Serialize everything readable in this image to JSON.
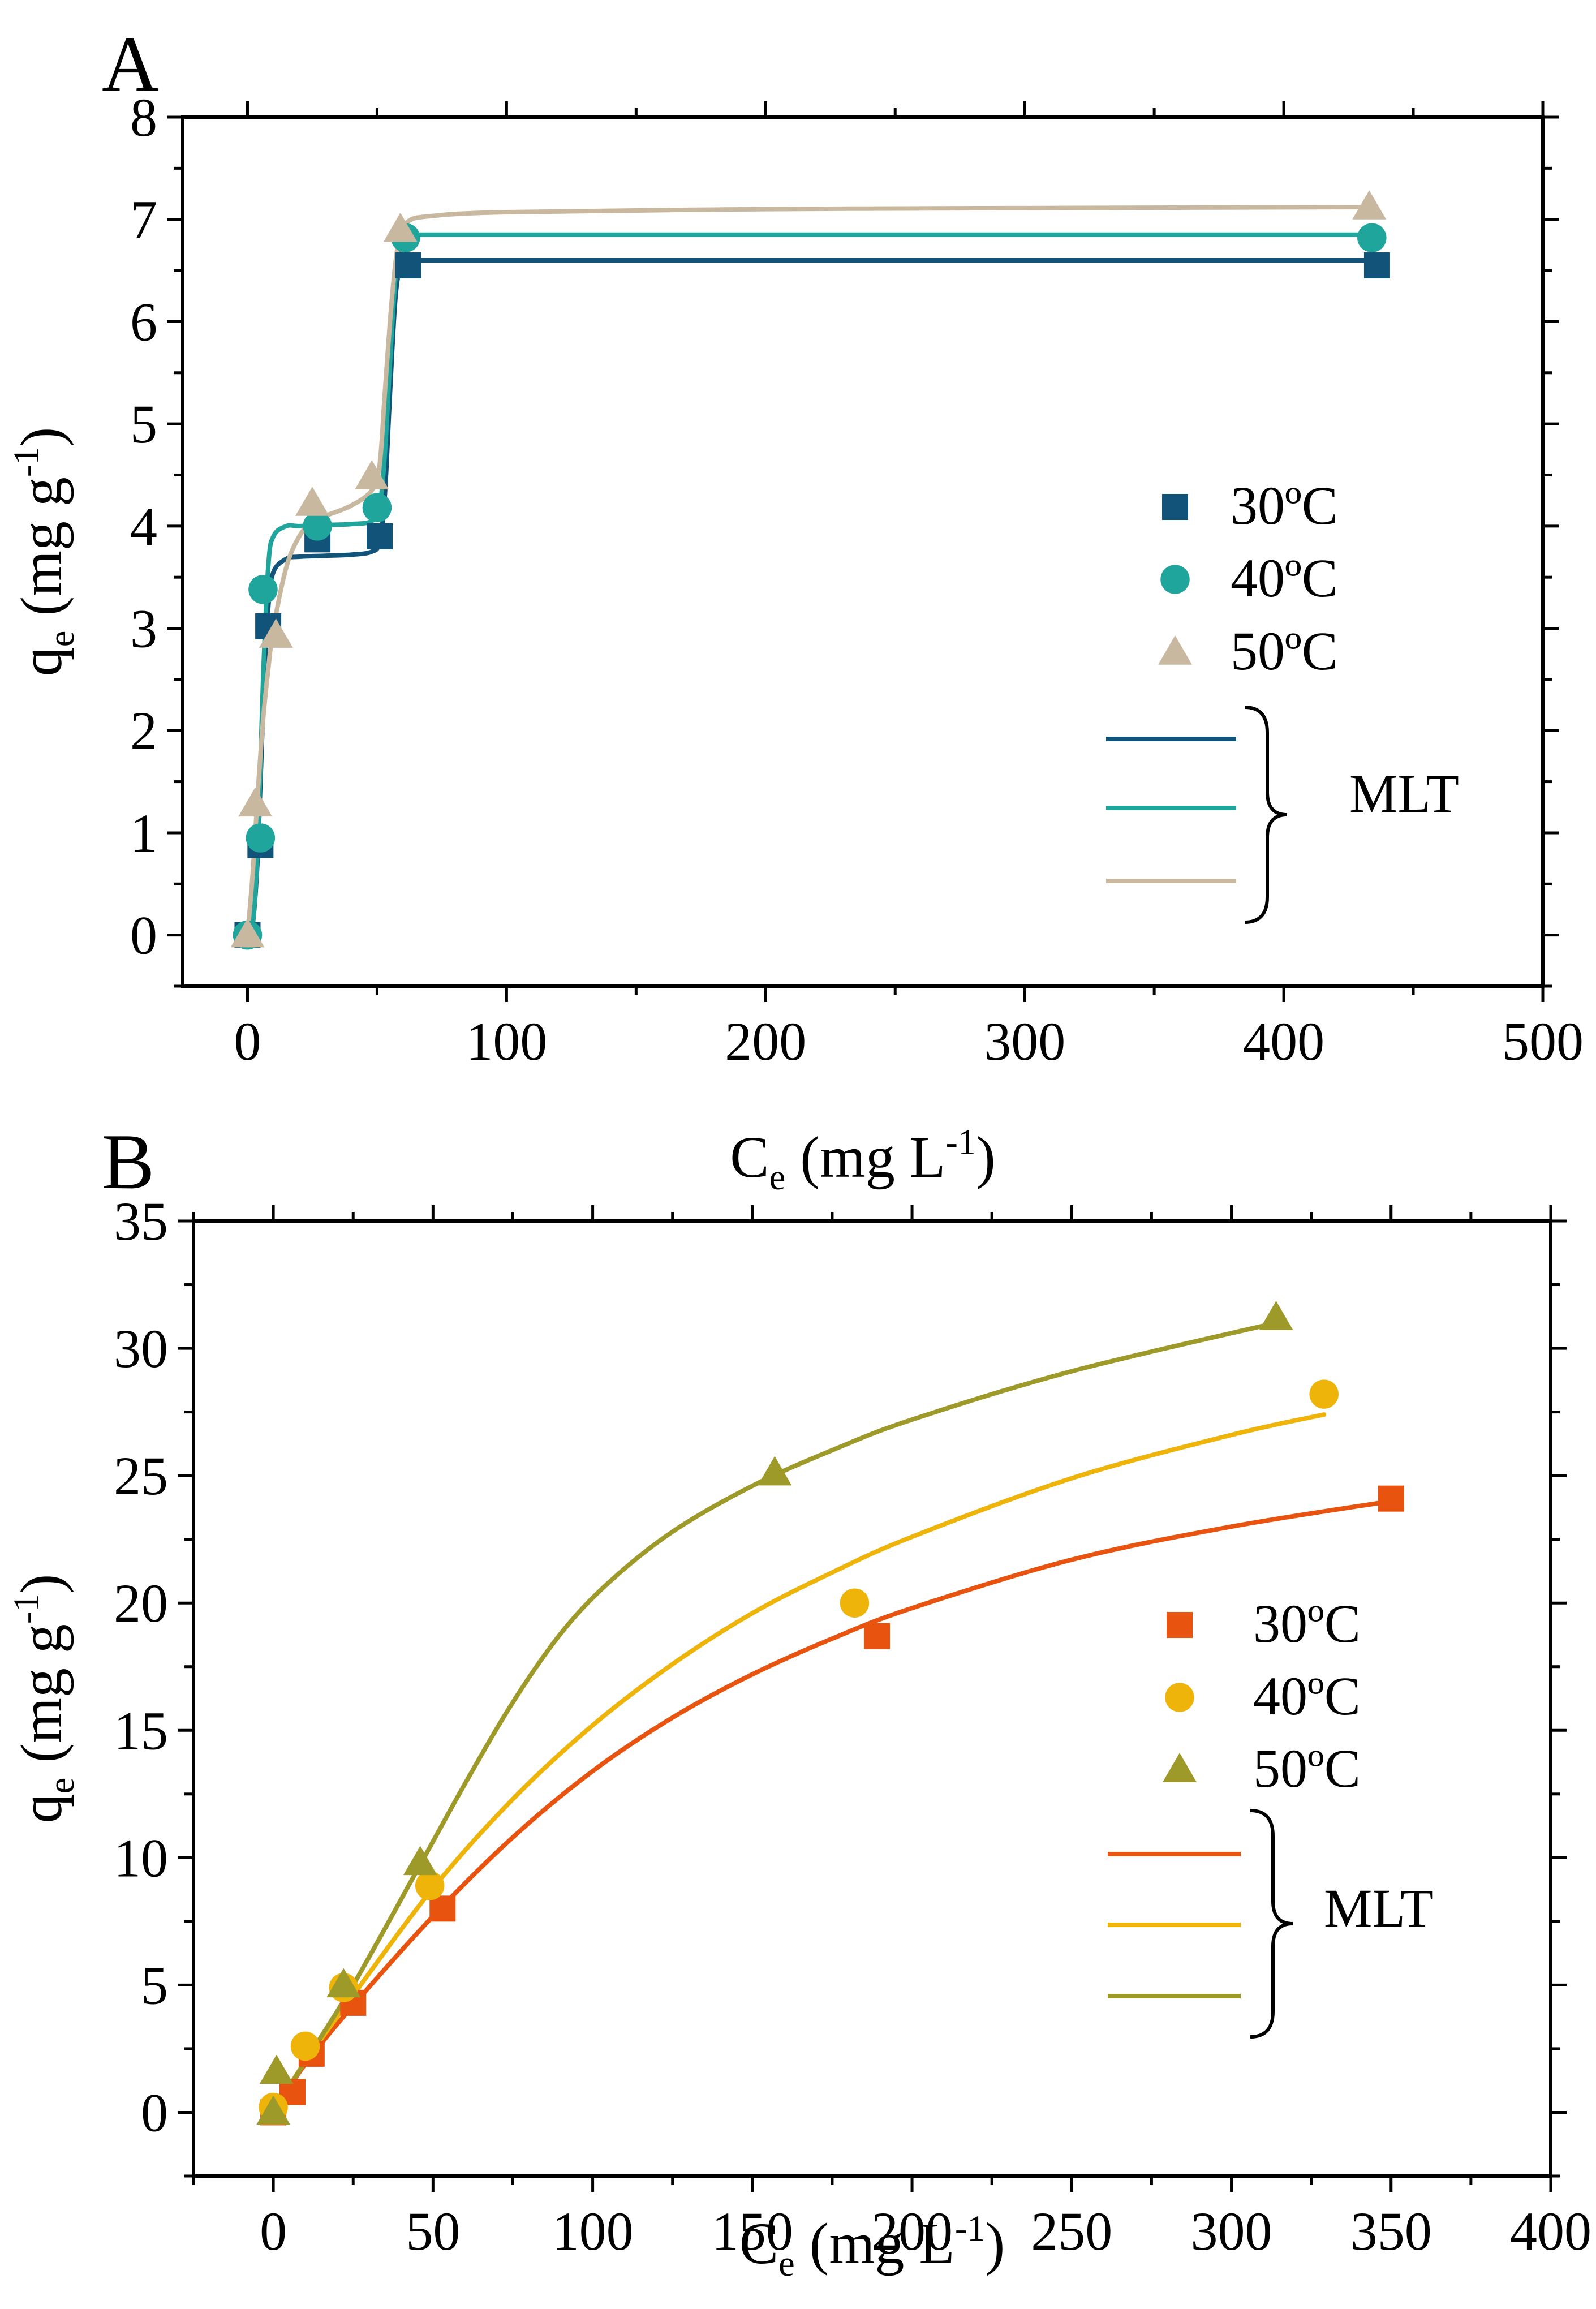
{
  "chart_data": [
    {
      "type": "scatter",
      "panel_label": "A",
      "xlabel": {
        "base": "C",
        "sub": "e",
        "units": " (mg L",
        "sup": "-1",
        "close": ")"
      },
      "ylabel": {
        "base": "q",
        "sub": "e",
        "units": " (mg g",
        "sup": "-1",
        "close": ")"
      },
      "xlim": [
        -25,
        500
      ],
      "ylim": [
        -0.5,
        8
      ],
      "xticks": [
        0,
        100,
        200,
        300,
        400,
        500
      ],
      "yticks": [
        0,
        1,
        2,
        3,
        4,
        5,
        6,
        7,
        8
      ],
      "legend_position": "right",
      "fit_label": "MLT",
      "series": [
        {
          "name": "30ºC",
          "marker": "square",
          "color": "#12537A",
          "x": [
            0,
            5,
            8,
            27,
            51,
            62,
            436
          ],
          "y": [
            0,
            0.88,
            3.02,
            3.87,
            3.9,
            6.55,
            6.55
          ],
          "fit_x": [
            0,
            2,
            4,
            6,
            8,
            10,
            15,
            20,
            30,
            40,
            48,
            51,
            53,
            55,
            57,
            59,
            61,
            65,
            100,
            200,
            300,
            436
          ],
          "fit_y": [
            0,
            0.1,
            0.8,
            2.2,
            3.2,
            3.55,
            3.68,
            3.7,
            3.71,
            3.72,
            3.75,
            3.85,
            4.3,
            5.3,
            6.2,
            6.55,
            6.6,
            6.6,
            6.6,
            6.6,
            6.6,
            6.6
          ]
        },
        {
          "name": "40ºC",
          "marker": "circle",
          "color": "#20A59C",
          "x": [
            0,
            5,
            6,
            27,
            50,
            61,
            434
          ],
          "y": [
            0,
            0.95,
            3.38,
            4.0,
            4.18,
            6.82,
            6.82
          ],
          "fit_x": [
            0,
            2,
            4,
            6,
            8,
            10,
            15,
            20,
            30,
            40,
            48,
            51,
            53,
            55,
            57,
            59,
            61,
            65,
            100,
            200,
            300,
            434
          ],
          "fit_y": [
            0,
            0.1,
            0.9,
            2.5,
            3.6,
            3.9,
            4.0,
            4.0,
            4.01,
            4.02,
            4.05,
            4.2,
            4.7,
            5.6,
            6.4,
            6.8,
            6.85,
            6.85,
            6.85,
            6.85,
            6.85,
            6.85
          ]
        },
        {
          "name": "50ºC",
          "marker": "triangle",
          "color": "#C8B8A0",
          "x": [
            0,
            3,
            11,
            25,
            48,
            59,
            433
          ],
          "y": [
            0,
            1.28,
            2.93,
            4.22,
            4.48,
            6.9,
            7.12
          ],
          "fit_x": [
            0,
            2,
            4,
            6,
            8,
            10,
            15,
            20,
            25,
            30,
            40,
            48,
            51,
            53,
            55,
            57,
            59,
            62,
            70,
            100,
            200,
            300,
            433
          ],
          "fit_y": [
            0,
            0.6,
            1.4,
            2.1,
            2.6,
            3.0,
            3.6,
            3.9,
            4.05,
            4.1,
            4.2,
            4.35,
            4.6,
            5.3,
            6.0,
            6.55,
            6.85,
            6.98,
            7.03,
            7.07,
            7.1,
            7.11,
            7.12
          ]
        }
      ]
    },
    {
      "type": "scatter",
      "panel_label": "B",
      "xlabel": {
        "base": "C",
        "sub": "e",
        "units": " (mg L",
        "sup": "-1",
        "close": ")"
      },
      "ylabel": {
        "base": "q",
        "sub": "e",
        "units": " (mg g",
        "sup": "-1",
        "close": ")"
      },
      "xlim": [
        -25,
        400
      ],
      "ylim": [
        -2.5,
        35
      ],
      "xticks": [
        0,
        50,
        100,
        150,
        200,
        250,
        300,
        350,
        400
      ],
      "yticks": [
        0,
        5,
        10,
        15,
        20,
        25,
        30,
        35
      ],
      "legend_position": "right",
      "fit_label": "MLT",
      "series": [
        {
          "name": "30ºC",
          "marker": "square",
          "color": "#E8540F",
          "x": [
            0,
            6,
            12,
            25,
            53,
            189,
            350
          ],
          "y": [
            0,
            0.8,
            2.3,
            4.3,
            8.0,
            18.7,
            24.1
          ],
          "fit_x": [
            0,
            10,
            25,
            50,
            75,
            100,
            125,
            150,
            175,
            200,
            250,
            300,
            350
          ],
          "fit_y": [
            0,
            1.9,
            4.2,
            7.7,
            10.8,
            13.4,
            15.5,
            17.2,
            18.6,
            19.8,
            21.7,
            23.0,
            24.0
          ]
        },
        {
          "name": "40ºC",
          "marker": "circle",
          "color": "#EEB40A",
          "x": [
            0,
            10,
            22,
            49,
            182,
            329
          ],
          "y": [
            0.2,
            2.6,
            4.9,
            8.9,
            20.0,
            28.2
          ],
          "fit_x": [
            0,
            10,
            25,
            50,
            75,
            100,
            125,
            150,
            175,
            200,
            250,
            300,
            329
          ],
          "fit_y": [
            0,
            2.0,
            4.6,
            8.8,
            12.3,
            15.2,
            17.6,
            19.6,
            21.2,
            22.6,
            24.9,
            26.6,
            27.4
          ]
        },
        {
          "name": "50ºC",
          "marker": "triangle",
          "color": "#9E9A2A",
          "x": [
            0,
            1,
            22,
            46,
            157,
            314
          ],
          "y": [
            0,
            1.6,
            5.0,
            9.8,
            25.1,
            31.2
          ],
          "fit_x": [
            0,
            10,
            25,
            45,
            60,
            75,
            90,
            105,
            125,
            150,
            175,
            200,
            250,
            314
          ],
          "fit_y": [
            0,
            2.0,
            5.0,
            9.5,
            12.9,
            16.1,
            18.8,
            20.8,
            22.8,
            24.6,
            26.0,
            27.2,
            29.1,
            31.0
          ]
        }
      ]
    }
  ]
}
